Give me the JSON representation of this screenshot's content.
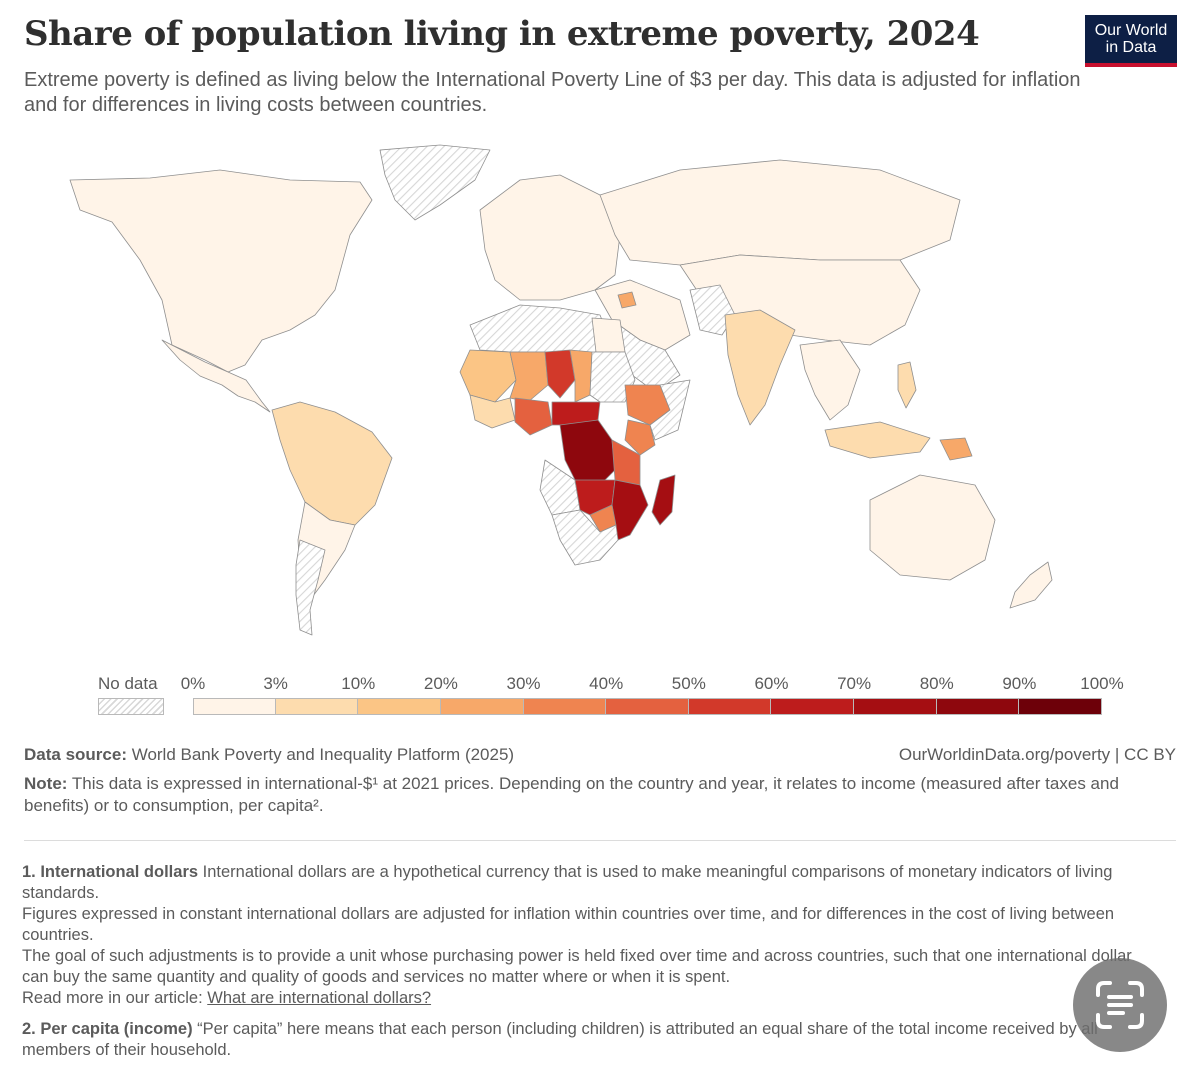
{
  "header": {
    "title": "Share of population living in extreme poverty, 2024",
    "subtitle": "Extreme poverty is defined as living below the International Poverty Line of $3 per day. This data is adjusted for inflation and for differences in living costs between countries.",
    "logo_line1": "Our World",
    "logo_line2": "in Data"
  },
  "legend": {
    "no_data_label": "No data",
    "bins": [
      {
        "label": "0%",
        "color": "#fff4e8"
      },
      {
        "label": "3%",
        "color": "#fddcae"
      },
      {
        "label": "10%",
        "color": "#fbc585"
      },
      {
        "label": "20%",
        "color": "#f7a869"
      },
      {
        "label": "30%",
        "color": "#ef8450"
      },
      {
        "label": "40%",
        "color": "#e4613f"
      },
      {
        "label": "50%",
        "color": "#d2392a"
      },
      {
        "label": "60%",
        "color": "#bd1c1c"
      },
      {
        "label": "70%",
        "color": "#a50e12"
      },
      {
        "label": "80%",
        "color": "#8e070d"
      },
      {
        "label": "90%",
        "color": "#6d0009"
      }
    ],
    "end_label": "100%"
  },
  "map_data": {
    "type": "choropleth",
    "metric": "Share of population living in extreme poverty",
    "year": 2024,
    "poverty_line": "$3 per day",
    "regions": [
      {
        "region": "North America",
        "bin": "0–3%"
      },
      {
        "region": "Mexico & Central America",
        "bin": "0–3%"
      },
      {
        "region": "Colombia, Peru & Brazil",
        "bin": "3–10%"
      },
      {
        "region": "Bolivia",
        "bin": "3–10%"
      },
      {
        "region": "Europe",
        "bin": "0–3%"
      },
      {
        "region": "Russia & Central Asia",
        "bin": "0–3%"
      },
      {
        "region": "China & East Asia",
        "bin": "0–3%"
      },
      {
        "region": "India",
        "bin": "3–10%"
      },
      {
        "region": "Syria",
        "bin": "10–20%"
      },
      {
        "region": "Philippines",
        "bin": "3–10%"
      },
      {
        "region": "Indonesia",
        "bin": "3–10%"
      },
      {
        "region": "Papua New Guinea",
        "bin": "10–20%"
      },
      {
        "region": "Australia",
        "bin": "0–3%"
      },
      {
        "region": "Mauritania & West Sahel",
        "bin": "10–20%"
      },
      {
        "region": "Mali",
        "bin": "20–30%"
      },
      {
        "region": "Niger",
        "bin": "50–60%"
      },
      {
        "region": "Chad",
        "bin": "20–30%"
      },
      {
        "region": "Nigeria",
        "bin": "40–50%"
      },
      {
        "region": "Ethiopia",
        "bin": "30–40%"
      },
      {
        "region": "Kenya",
        "bin": "30–40%"
      },
      {
        "region": "Central African Republic",
        "bin": "60–70%"
      },
      {
        "region": "DR Congo",
        "bin": "80–90%"
      },
      {
        "region": "Mozambique & Malawi",
        "bin": "70–80%"
      },
      {
        "region": "Madagascar",
        "bin": "70–80%"
      },
      {
        "region": "Zambia",
        "bin": "60–70%"
      },
      {
        "region": "Zimbabwe",
        "bin": "30–40%"
      },
      {
        "region": "Southern Africa",
        "bin": "No data"
      },
      {
        "region": "Argentina",
        "bin": "No data"
      },
      {
        "region": "Greenland",
        "bin": "No data"
      },
      {
        "region": "Saudi Arabia & Gulf",
        "bin": "No data"
      },
      {
        "region": "Afghanistan & Pakistan",
        "bin": "No data"
      }
    ]
  },
  "footer": {
    "source_label": "Data source:",
    "source_text": " World Bank Poverty and Inequality Platform (2025)",
    "source_right": "OurWorldinData.org/poverty | CC BY",
    "note_label": "Note:",
    "note_text": " This data is expressed in international-$¹ at 2021 prices. Depending on the country and year, it relates to income (measured after taxes and benefits) or to consumption, per capita².",
    "fn1_title": "1. International dollars",
    "fn1_p1": " International dollars are a hypothetical currency that is used to make meaningful comparisons of monetary indicators of living standards.",
    "fn1_p2": "Figures expressed in constant international dollars are adjusted for inflation within countries over time, and for differences in the cost of living between countries.",
    "fn1_p3": "The goal of such adjustments is to provide a unit whose purchasing power is held fixed over time and across countries, such that one international dollar can buy the same quantity and quality of goods and services no matter where or when it is spent.",
    "fn1_read_more": "Read more in our article: ",
    "fn1_link": "What are international dollars?",
    "fn2_title": "2. Per capita (income)",
    "fn2_text": " “Per capita” here means that each person (including children) is attributed an equal share of the total income received by all members of their household."
  },
  "colors": {
    "title": "#2f2f2f",
    "text": "#5b5b5b",
    "logo_bg": "#0d1f45",
    "logo_accent": "#c8102e",
    "no_data_hatch": "#d8d8d8"
  }
}
